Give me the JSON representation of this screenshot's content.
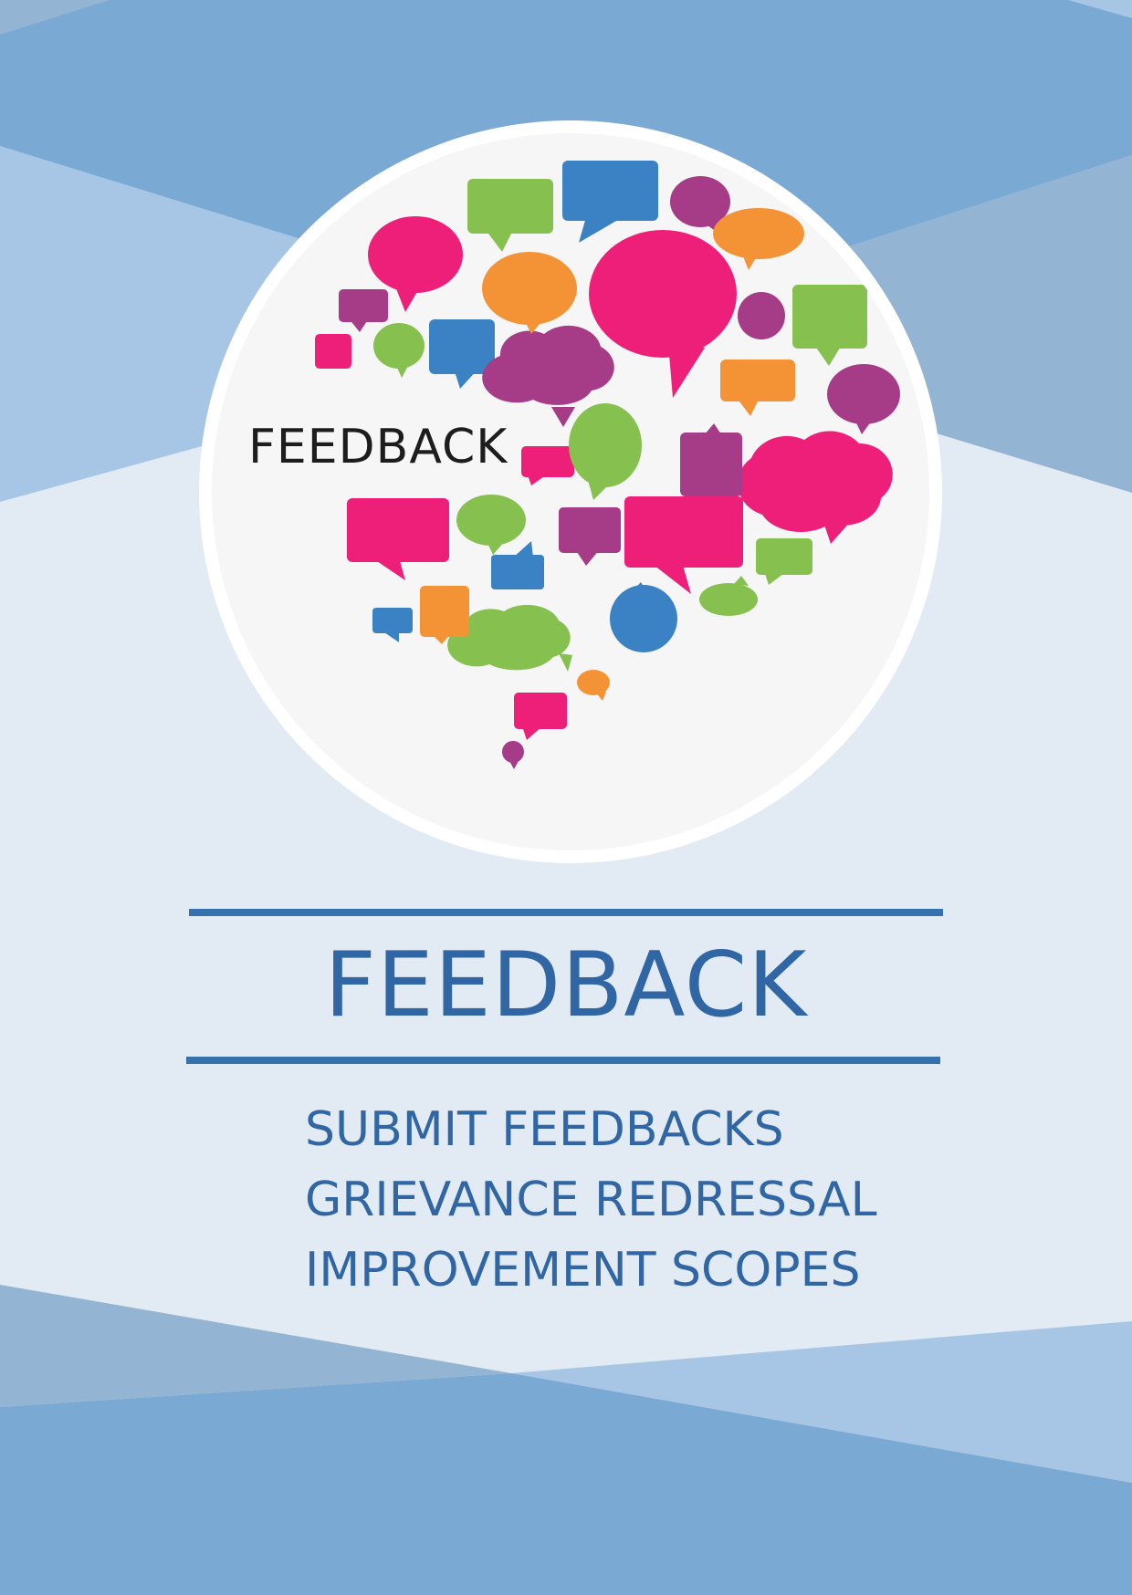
{
  "logo": {
    "label": "FEEDBACK",
    "bubble_colors": [
      "#ee1f78",
      "#3a82c4",
      "#86c04f",
      "#a63b87",
      "#f39336"
    ]
  },
  "main": {
    "title": "FEEDBACK",
    "items": [
      {
        "label": "SUBMIT FEEDBACKS"
      },
      {
        "label": "GRIEVANCE REDRESSAL"
      },
      {
        "label": "IMPROVEMENT SCOPES"
      }
    ]
  },
  "colors": {
    "accent": "#3066a4",
    "rule": "#3572ad",
    "background": "#e2eaf3"
  }
}
